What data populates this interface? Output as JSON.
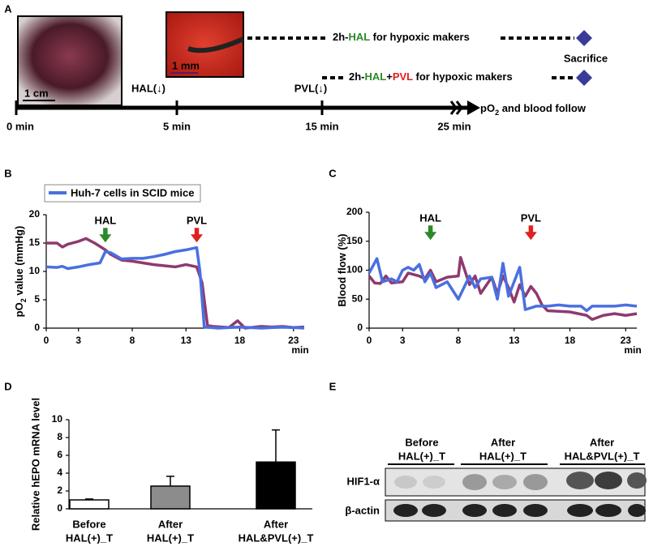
{
  "panel_labels": [
    "A",
    "B",
    "C",
    "D",
    "E"
  ],
  "timeline": {
    "scale_bars": [
      "1 cm",
      "1 mm"
    ],
    "markers": [
      {
        "text": "HAL(↓)",
        "color": "#2a8a2a"
      },
      {
        "text": "PVL(↓)",
        "color": "#e02020"
      }
    ],
    "treatments": [
      {
        "parts": [
          "2h-",
          "HAL",
          " for hypoxic makers"
        ],
        "colors": [
          "#000000",
          "#2a8a2a",
          "#000000"
        ]
      },
      {
        "parts": [
          "2h-",
          "HAL",
          "+",
          "PVL",
          " for hypoxic makers"
        ],
        "colors": [
          "#000000",
          "#2a8a2a",
          "#000000",
          "#e02020",
          "#000000"
        ]
      }
    ],
    "endpoint": "Sacrifice",
    "times": [
      "0 min",
      "5 min",
      "15 min",
      "25 min"
    ],
    "readout": [
      {
        "text": "pO",
        "sub": false
      },
      {
        "text": "2",
        "sub": true
      },
      {
        "text": " and blood follow",
        "sub": false
      }
    ]
  },
  "chart_data": [
    {
      "type": "line",
      "y_label": [
        {
          "text": "pO",
          "sub": false
        },
        {
          "text": "2",
          "sub": true
        },
        {
          "text": " value (mmHg)",
          "sub": false
        }
      ],
      "x_unit": "min",
      "legend_label": "Huh-7 cells in SCID mice",
      "legend_color": "#4a6fe0",
      "xlim": [
        0,
        24
      ],
      "xticks": [
        0,
        3,
        8,
        13,
        18,
        23
      ],
      "ylim": [
        0,
        20
      ],
      "yticks": [
        0,
        5,
        10,
        15,
        20
      ],
      "annotations": [
        {
          "text": "HAL",
          "x": 5.5,
          "color": "#2a8a2a"
        },
        {
          "text": "PVL",
          "x": 14,
          "color": "#e02020"
        }
      ],
      "series": [
        {
          "color": "#8e3a6e",
          "x": [
            0,
            1,
            1.5,
            2,
            3,
            3.7,
            4.5,
            5.5,
            6,
            7,
            8,
            9,
            10,
            11,
            12,
            13,
            14,
            14.5,
            15,
            15.5,
            17,
            17.8,
            18.5,
            20,
            21,
            22,
            23,
            24
          ],
          "values": [
            15,
            15,
            14.3,
            14.8,
            15.3,
            15.8,
            15,
            13.8,
            13,
            12,
            11.8,
            11.5,
            11.2,
            11,
            10.8,
            11.2,
            10.8,
            8,
            0.5,
            0.3,
            0.1,
            1.3,
            0,
            0.3,
            0.2,
            0.3,
            0.1,
            0.2
          ]
        },
        {
          "color": "#4a6fe0",
          "x": [
            0,
            1,
            1.5,
            2,
            3,
            4,
            5,
            5.5,
            6,
            7,
            8,
            9,
            10,
            11,
            12,
            13,
            14,
            14.3,
            14.7,
            16,
            18,
            20,
            22,
            24
          ],
          "values": [
            10.8,
            10.7,
            10.9,
            10.5,
            10.8,
            11.2,
            11.5,
            13.5,
            13.3,
            12.2,
            12.3,
            12.3,
            12.6,
            13,
            13.5,
            13.8,
            14.2,
            10,
            0.2,
            0,
            0.2,
            0,
            0.2,
            0
          ]
        }
      ]
    },
    {
      "type": "line",
      "y_label": [
        {
          "text": "Blood flow (%)",
          "sub": false
        }
      ],
      "x_unit": "min",
      "xlim": [
        0,
        24
      ],
      "xticks": [
        0,
        3,
        8,
        13,
        18,
        23
      ],
      "ylim": [
        0,
        200
      ],
      "yticks": [
        0,
        50,
        100,
        150,
        200
      ],
      "annotations": [
        {
          "text": "HAL",
          "x": 5.5,
          "color": "#2a8a2a"
        },
        {
          "text": "PVL",
          "x": 14.5,
          "color": "#e02020"
        }
      ],
      "series": [
        {
          "color": "#8e3a6e",
          "x": [
            0,
            0.5,
            1,
            1.5,
            2,
            3,
            3.5,
            4.5,
            5,
            5.5,
            6,
            7,
            8,
            8.2,
            9,
            9.5,
            10,
            11,
            11.5,
            12,
            12.5,
            13,
            13.5,
            14,
            14.5,
            15,
            15.5,
            16,
            18,
            19.5,
            20,
            21,
            22,
            23,
            24
          ],
          "values": [
            90,
            78,
            77,
            90,
            78,
            80,
            95,
            90,
            85,
            100,
            80,
            88,
            90,
            122,
            75,
            90,
            60,
            88,
            60,
            90,
            70,
            45,
            75,
            55,
            72,
            60,
            40,
            30,
            28,
            22,
            15,
            22,
            25,
            22,
            25
          ]
        },
        {
          "color": "#4a6fe0",
          "x": [
            0,
            0.7,
            1.2,
            2,
            2.5,
            3,
            3.5,
            4,
            4.5,
            5,
            5.5,
            6,
            7,
            8,
            9,
            9.5,
            10,
            11,
            11.5,
            12,
            12.5,
            13,
            13.5,
            14,
            15,
            16,
            17,
            18,
            19,
            19.5,
            20,
            21,
            22,
            23,
            24
          ],
          "values": [
            95,
            120,
            80,
            85,
            80,
            100,
            105,
            100,
            110,
            80,
            95,
            70,
            80,
            50,
            90,
            70,
            85,
            88,
            50,
            112,
            55,
            80,
            105,
            32,
            38,
            38,
            40,
            38,
            38,
            30,
            38,
            38,
            38,
            40,
            38
          ]
        }
      ]
    },
    {
      "type": "bar",
      "y_label": "Relative hEPO  mRNA level",
      "categories": [
        [
          "Before",
          "HAL(+)_T"
        ],
        [
          "After",
          "HAL(+)_T"
        ],
        [
          "After",
          "HAL&PVL(+)_T"
        ]
      ],
      "values": [
        1.0,
        2.55,
        5.25
      ],
      "errors": [
        0.1,
        1.1,
        3.6
      ],
      "colors": [
        "#ffffff",
        "#8c8c8c",
        "#000000"
      ],
      "ylim": [
        0,
        10
      ],
      "yticks": [
        0,
        2,
        4,
        6,
        8,
        10
      ]
    }
  ],
  "blot": {
    "groups": [
      [
        "Before",
        "HAL(+)_T"
      ],
      [
        "After",
        "HAL(+)_T"
      ],
      [
        "After",
        "HAL&PVL(+)_T"
      ]
    ],
    "rows": [
      "HIF1-α",
      "β-actin"
    ]
  }
}
